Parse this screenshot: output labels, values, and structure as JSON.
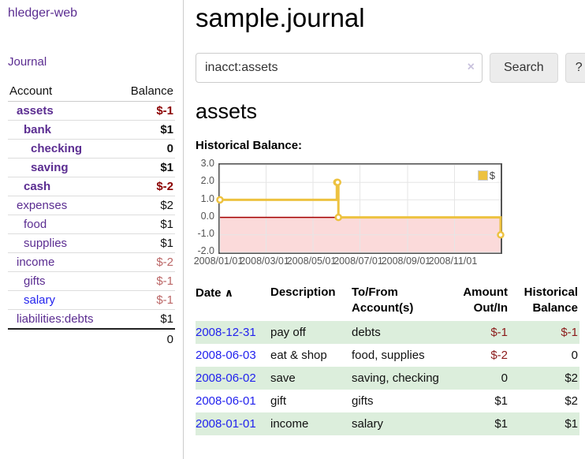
{
  "app": {
    "brand": "hledger-web",
    "nav_journal": "Journal"
  },
  "sidebar": {
    "accounts_table": {
      "headers": [
        "Account",
        "Balance"
      ],
      "rows": [
        {
          "name": "assets",
          "depth": 1,
          "bold": true,
          "balance": "$-1"
        },
        {
          "name": "bank",
          "depth": 2,
          "bold": true,
          "balance": "$1"
        },
        {
          "name": "checking",
          "depth": 3,
          "bold": true,
          "balance": "0"
        },
        {
          "name": "saving",
          "depth": 3,
          "bold": true,
          "balance": "$1"
        },
        {
          "name": "cash",
          "depth": 2,
          "bold": true,
          "balance": "$-2"
        },
        {
          "name": "expenses",
          "depth": 1,
          "bold": false,
          "balance": "$2"
        },
        {
          "name": "food",
          "depth": 2,
          "bold": false,
          "balance": "$1"
        },
        {
          "name": "supplies",
          "depth": 2,
          "bold": false,
          "balance": "$1"
        },
        {
          "name": "income",
          "depth": 1,
          "bold": false,
          "balance": "$-2"
        },
        {
          "name": "gifts",
          "depth": 2,
          "bold": false,
          "balance": "$-1"
        },
        {
          "name": "salary",
          "depth": 2,
          "bold": false,
          "balance": "$-1",
          "blue": true
        },
        {
          "name": "liabilities:debts",
          "depth": 1,
          "bold": false,
          "balance": "$1"
        }
      ],
      "total": "0"
    }
  },
  "header": {
    "title": "sample.journal"
  },
  "search": {
    "value": "inacct:assets",
    "clear_icon": "×",
    "button": "Search",
    "help_button": "?"
  },
  "account_page": {
    "heading": "assets"
  },
  "chart_data": {
    "type": "line",
    "title": "Historical Balance:",
    "legend_label": "$",
    "legend_position": "top-right",
    "grid": true,
    "x_start": "2008-01-01",
    "x_end": "2008-12-31",
    "xtick_labels": [
      "2008/01/01",
      "2008/03/01",
      "2008/05/01",
      "2008/07/01",
      "2008/09/01",
      "2008/11/01"
    ],
    "ytick_labels": [
      "3.0",
      "2.0",
      "1.0",
      "0.0",
      "-1.0",
      "-2.0"
    ],
    "ylim": [
      -2,
      3
    ],
    "series": [
      {
        "name": "$",
        "color": "#edc240",
        "step": true,
        "points": [
          [
            "2008-01-01",
            1
          ],
          [
            "2008-06-01",
            2
          ],
          [
            "2008-06-02",
            2
          ],
          [
            "2008-06-03",
            0
          ],
          [
            "2008-12-31",
            -1
          ]
        ]
      }
    ],
    "negative_region_color": "#fbdada",
    "zero_line_color": "#a40000",
    "grid_color": "#e6e6e6",
    "border_color": "#545454"
  },
  "register": {
    "headers": {
      "date": "Date",
      "sort_icon": "∧",
      "description": "Description",
      "tofrom_line1": "To/From",
      "tofrom_line2": "Account(s)",
      "amount_line1": "Amount",
      "amount_line2": "Out/In",
      "balance_line1": "Historical",
      "balance_line2": "Balance"
    },
    "rows": [
      {
        "date": "2008-12-31",
        "description": "pay off",
        "accounts": "debts",
        "amount": "$-1",
        "balance": "$-1"
      },
      {
        "date": "2008-06-03",
        "description": "eat & shop",
        "accounts": "food, supplies",
        "amount": "$-2",
        "balance": "0"
      },
      {
        "date": "2008-06-02",
        "description": "save",
        "accounts": "saving, checking",
        "amount": "0",
        "balance": "$2"
      },
      {
        "date": "2008-06-01",
        "description": "gift",
        "accounts": "gifts",
        "amount": "$1",
        "balance": "$2"
      },
      {
        "date": "2008-01-01",
        "description": "income",
        "accounts": "salary",
        "amount": "$1",
        "balance": "$1"
      }
    ]
  }
}
